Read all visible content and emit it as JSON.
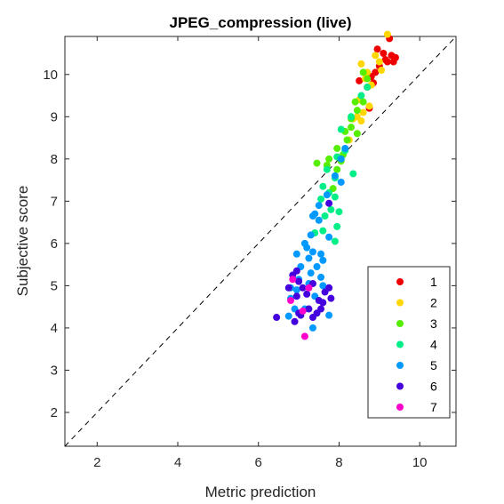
{
  "chart_data": {
    "type": "scatter",
    "title": "JPEG_compression (live)",
    "xlabel": "Metric prediction",
    "ylabel": "Subjective score",
    "xlim": [
      1.2,
      10.9
    ],
    "ylim": [
      1.2,
      10.9
    ],
    "xticks": [
      2,
      4,
      6,
      8,
      10
    ],
    "yticks": [
      2,
      3,
      4,
      5,
      6,
      7,
      8,
      9,
      10
    ],
    "grid": false,
    "legend_position": "bottom-right",
    "reference_line": "dashed diagonal y = x",
    "series": [
      {
        "name": "1",
        "color": "#ee0000",
        "points": [
          [
            9.25,
            10.85
          ],
          [
            9.1,
            10.5
          ],
          [
            9.3,
            10.45
          ],
          [
            9.4,
            10.4
          ],
          [
            9.2,
            10.3
          ],
          [
            9.0,
            10.2
          ],
          [
            8.9,
            10.05
          ],
          [
            8.8,
            9.95
          ],
          [
            8.95,
            10.6
          ],
          [
            8.5,
            9.85
          ],
          [
            9.15,
            10.35
          ],
          [
            8.7,
            9.7
          ],
          [
            8.75,
            9.2
          ],
          [
            9.35,
            10.3
          ],
          [
            8.85,
            9.8
          ]
        ]
      },
      {
        "name": "2",
        "color": "#ffd700",
        "points": [
          [
            9.2,
            10.95
          ],
          [
            8.55,
            10.25
          ],
          [
            8.9,
            10.45
          ],
          [
            9.0,
            10.3
          ],
          [
            8.7,
            10.05
          ],
          [
            8.65,
            9.9
          ],
          [
            8.8,
            9.75
          ],
          [
            8.5,
            9.4
          ],
          [
            8.35,
            8.95
          ],
          [
            8.6,
            9.1
          ],
          [
            8.75,
            9.25
          ],
          [
            8.55,
            8.9
          ],
          [
            8.25,
            8.45
          ],
          [
            8.45,
            9.0
          ],
          [
            9.05,
            10.1
          ]
        ]
      },
      {
        "name": "3",
        "color": "#55ee00",
        "points": [
          [
            8.6,
            10.05
          ],
          [
            8.7,
            9.9
          ],
          [
            8.4,
            9.35
          ],
          [
            8.45,
            9.15
          ],
          [
            8.3,
            8.75
          ],
          [
            8.15,
            8.65
          ],
          [
            8.2,
            8.45
          ],
          [
            7.95,
            8.25
          ],
          [
            7.75,
            8.0
          ],
          [
            7.7,
            7.85
          ],
          [
            7.95,
            7.75
          ],
          [
            8.05,
            7.95
          ],
          [
            8.1,
            8.1
          ],
          [
            8.45,
            8.6
          ],
          [
            7.45,
            7.9
          ],
          [
            7.85,
            7.3
          ],
          [
            8.6,
            9.35
          ],
          [
            8.3,
            8.95
          ]
        ]
      },
      {
        "name": "4",
        "color": "#00ee88",
        "points": [
          [
            8.7,
            9.7
          ],
          [
            8.55,
            9.5
          ],
          [
            8.3,
            9.0
          ],
          [
            8.05,
            8.7
          ],
          [
            7.95,
            8.05
          ],
          [
            7.7,
            7.75
          ],
          [
            7.9,
            7.55
          ],
          [
            7.6,
            7.35
          ],
          [
            7.75,
            7.2
          ],
          [
            7.55,
            7.05
          ],
          [
            7.9,
            7.1
          ],
          [
            7.8,
            6.8
          ],
          [
            7.65,
            6.65
          ],
          [
            7.95,
            6.4
          ],
          [
            7.6,
            6.3
          ],
          [
            7.9,
            6.05
          ],
          [
            7.4,
            6.25
          ],
          [
            8.0,
            6.75
          ],
          [
            8.35,
            7.65
          ],
          [
            8.15,
            8.2
          ]
        ]
      },
      {
        "name": "5",
        "color": "#0099ff",
        "points": [
          [
            8.15,
            8.25
          ],
          [
            8.05,
            8.0
          ],
          [
            7.9,
            7.6
          ],
          [
            7.7,
            7.15
          ],
          [
            7.5,
            6.9
          ],
          [
            7.35,
            6.65
          ],
          [
            7.5,
            6.55
          ],
          [
            7.3,
            6.2
          ],
          [
            7.2,
            5.9
          ],
          [
            7.25,
            5.65
          ],
          [
            7.05,
            5.45
          ],
          [
            7.0,
            5.15
          ],
          [
            7.3,
            5.3
          ],
          [
            7.6,
            5.6
          ],
          [
            7.55,
            5.2
          ],
          [
            6.95,
            4.9
          ],
          [
            6.8,
            4.7
          ],
          [
            6.9,
            4.45
          ],
          [
            7.15,
            4.45
          ],
          [
            7.4,
            4.75
          ],
          [
            7.75,
            4.3
          ],
          [
            7.35,
            4.0
          ],
          [
            7.45,
            5.45
          ],
          [
            7.55,
            5.75
          ],
          [
            6.95,
            5.75
          ],
          [
            7.4,
            6.7
          ],
          [
            7.15,
            6.0
          ],
          [
            6.75,
            4.28
          ],
          [
            7.25,
            5.05
          ],
          [
            8.05,
            7.45
          ],
          [
            7.75,
            6.15
          ],
          [
            7.6,
            5.0
          ],
          [
            7.35,
            5.8
          ],
          [
            6.8,
            4.95
          ]
        ]
      },
      {
        "name": "6",
        "color": "#4400dd",
        "points": [
          [
            7.75,
            6.95
          ],
          [
            6.95,
            5.35
          ],
          [
            6.85,
            5.25
          ],
          [
            7.0,
            5.1
          ],
          [
            6.75,
            4.95
          ],
          [
            6.95,
            4.75
          ],
          [
            7.1,
            4.95
          ],
          [
            7.35,
            5.05
          ],
          [
            7.2,
            4.8
          ],
          [
            7.5,
            4.65
          ],
          [
            7.65,
            4.85
          ],
          [
            7.75,
            4.95
          ],
          [
            7.55,
            4.45
          ],
          [
            7.25,
            4.45
          ],
          [
            7.0,
            4.35
          ],
          [
            7.35,
            4.25
          ],
          [
            6.45,
            4.25
          ],
          [
            6.9,
            4.15
          ],
          [
            7.05,
            4.3
          ],
          [
            7.6,
            4.6
          ],
          [
            7.45,
            4.35
          ],
          [
            7.8,
            4.7
          ]
        ]
      },
      {
        "name": "7",
        "color": "#ff00cc",
        "points": [
          [
            6.85,
            5.15
          ],
          [
            6.8,
            4.65
          ],
          [
            7.25,
            4.95
          ],
          [
            7.1,
            4.4
          ],
          [
            7.15,
            3.8
          ]
        ]
      }
    ]
  }
}
